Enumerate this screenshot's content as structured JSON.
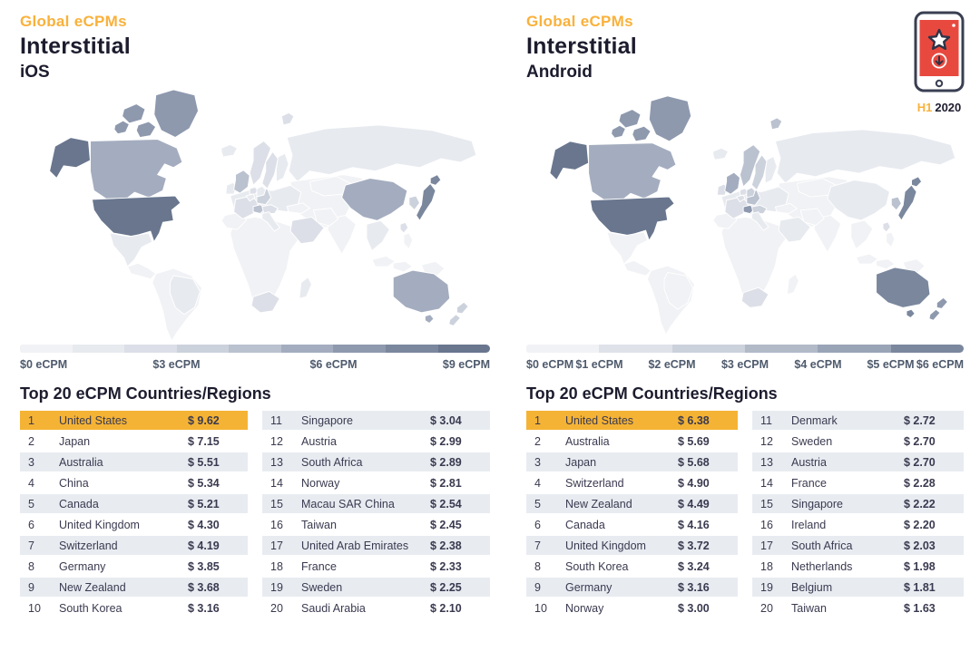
{
  "badge": {
    "icon": "phone-star-download-icon",
    "period": "H1",
    "year": "2020"
  },
  "colors": {
    "accent_orange": "#F9B13B",
    "highlight_row": "#F5B335",
    "heading": "#1C1C2E",
    "table_text": "#3A3A50",
    "row_alt_bg": "#E8ECF1",
    "legend_label": "#4E5A6C",
    "phone_red": "#E8493F",
    "phone_outline": "#3A3F52",
    "map_palette": [
      "#f1f2f5",
      "#e7eaef",
      "#dcdfe7",
      "#ccd2dc",
      "#bac1cf",
      "#a4adbf",
      "#8e99ae",
      "#7a879d",
      "#69768e"
    ]
  },
  "chart_data": [
    {
      "type": "heatmap",
      "eyebrow": "Global eCPMs",
      "title": "Interstitial",
      "platform": "iOS",
      "section_title": "Top 20 eCPM Countries/Regions",
      "unit": "USD eCPM",
      "legend": {
        "range": [
          0,
          9
        ],
        "segments": [
          "#f1f2f5",
          "#e7eaef",
          "#dcdfe7",
          "#ccd2dc",
          "#bac1cf",
          "#a4adbf",
          "#8e99ae",
          "#7a879d",
          "#69768e"
        ],
        "labels": [
          {
            "text": "$0 eCPM",
            "pos": 0
          },
          {
            "text": "$3 eCPM",
            "pos": 33.3
          },
          {
            "text": "$6 eCPM",
            "pos": 66.7
          },
          {
            "text": "$9 eCPM",
            "pos": 100
          }
        ]
      },
      "rows_left": [
        {
          "rank": 1,
          "country": "United States",
          "value": 9.62,
          "value_display": "$ 9.62"
        },
        {
          "rank": 2,
          "country": "Japan",
          "value": 7.15,
          "value_display": "$ 7.15"
        },
        {
          "rank": 3,
          "country": "Australia",
          "value": 5.51,
          "value_display": "$ 5.51"
        },
        {
          "rank": 4,
          "country": "China",
          "value": 5.34,
          "value_display": "$ 5.34"
        },
        {
          "rank": 5,
          "country": "Canada",
          "value": 5.21,
          "value_display": "$ 5.21"
        },
        {
          "rank": 6,
          "country": "United Kingdom",
          "value": 4.3,
          "value_display": "$ 4.30"
        },
        {
          "rank": 7,
          "country": "Switzerland",
          "value": 4.19,
          "value_display": "$ 4.19"
        },
        {
          "rank": 8,
          "country": "Germany",
          "value": 3.85,
          "value_display": "$ 3.85"
        },
        {
          "rank": 9,
          "country": "New Zealand",
          "value": 3.68,
          "value_display": "$ 3.68"
        },
        {
          "rank": 10,
          "country": "South Korea",
          "value": 3.16,
          "value_display": "$ 3.16"
        }
      ],
      "rows_right": [
        {
          "rank": 11,
          "country": "Singapore",
          "value": 3.04,
          "value_display": "$ 3.04"
        },
        {
          "rank": 12,
          "country": "Austria",
          "value": 2.99,
          "value_display": "$ 2.99"
        },
        {
          "rank": 13,
          "country": "South Africa",
          "value": 2.89,
          "value_display": "$ 2.89"
        },
        {
          "rank": 14,
          "country": "Norway",
          "value": 2.81,
          "value_display": "$ 2.81"
        },
        {
          "rank": 15,
          "country": "Macau SAR China",
          "value": 2.54,
          "value_display": "$ 2.54"
        },
        {
          "rank": 16,
          "country": "Taiwan",
          "value": 2.45,
          "value_display": "$ 2.45"
        },
        {
          "rank": 17,
          "country": "United Arab Emirates",
          "value": 2.38,
          "value_display": "$ 2.38"
        },
        {
          "rank": 18,
          "country": "France",
          "value": 2.33,
          "value_display": "$ 2.33"
        },
        {
          "rank": 19,
          "country": "Sweden",
          "value": 2.25,
          "value_display": "$ 2.25"
        },
        {
          "rank": 20,
          "country": "Saudi Arabia",
          "value": 2.1,
          "value_display": "$ 2.10"
        }
      ],
      "map_levels": {
        "usa": 8,
        "alaska": 8,
        "japan_main": 7,
        "japan_hokkaido": 7,
        "greenland": 6,
        "arctic1": 6,
        "arctic2": 6,
        "arctic3": 6,
        "australia": 5,
        "tasmania": 5,
        "china": 5,
        "canada": 5,
        "uk": 4,
        "switzerland": 4,
        "germany": 3,
        "nz1": 3,
        "nz2": 3,
        "korea": 3,
        "austria": 2,
        "south_africa": 2,
        "norway": 2,
        "svalbard": 2,
        "taiwan": 2,
        "france": 2,
        "sweden": 2,
        "saudi": 2,
        "netherlands": 2,
        "belgium": 1,
        "denmark": 1,
        "finland": 1,
        "iceland": 1,
        "ireland": 1,
        "italy": 1,
        "europe_base": 1,
        "russia": 1,
        "brazil": 1,
        "mexico": 1,
        "sea": 1,
        "madagascar": 1
      }
    },
    {
      "type": "heatmap",
      "eyebrow": "Global eCPMs",
      "title": "Interstitial",
      "platform": "Android",
      "section_title": "Top 20 eCPM Countries/Regions",
      "unit": "USD eCPM",
      "legend": {
        "range": [
          0,
          6
        ],
        "segments": [
          "#f1f2f5",
          "#dfe2e9",
          "#ccd2dc",
          "#b2bac8",
          "#9aa4b7",
          "#7a879d"
        ],
        "labels": [
          {
            "text": "$0 eCPM",
            "pos": 0
          },
          {
            "text": "$1 eCPM",
            "pos": 16.7
          },
          {
            "text": "$2 eCPM",
            "pos": 33.3
          },
          {
            "text": "$3 eCPM",
            "pos": 50
          },
          {
            "text": "$4 eCPM",
            "pos": 66.7
          },
          {
            "text": "$5 eCPM",
            "pos": 83.3
          },
          {
            "text": "$6 eCPM",
            "pos": 100
          }
        ]
      },
      "rows_left": [
        {
          "rank": 1,
          "country": "United States",
          "value": 6.38,
          "value_display": "$ 6.38"
        },
        {
          "rank": 2,
          "country": "Australia",
          "value": 5.69,
          "value_display": "$ 5.69"
        },
        {
          "rank": 3,
          "country": "Japan",
          "value": 5.68,
          "value_display": "$ 5.68"
        },
        {
          "rank": 4,
          "country": "Switzerland",
          "value": 4.9,
          "value_display": "$ 4.90"
        },
        {
          "rank": 5,
          "country": "New Zealand",
          "value": 4.49,
          "value_display": "$ 4.49"
        },
        {
          "rank": 6,
          "country": "Canada",
          "value": 4.16,
          "value_display": "$ 4.16"
        },
        {
          "rank": 7,
          "country": "United Kingdom",
          "value": 3.72,
          "value_display": "$ 3.72"
        },
        {
          "rank": 8,
          "country": "South Korea",
          "value": 3.24,
          "value_display": "$ 3.24"
        },
        {
          "rank": 9,
          "country": "Germany",
          "value": 3.16,
          "value_display": "$ 3.16"
        },
        {
          "rank": 10,
          "country": "Norway",
          "value": 3.0,
          "value_display": "$ 3.00"
        }
      ],
      "rows_right": [
        {
          "rank": 11,
          "country": "Denmark",
          "value": 2.72,
          "value_display": "$ 2.72"
        },
        {
          "rank": 12,
          "country": "Sweden",
          "value": 2.7,
          "value_display": "$ 2.70"
        },
        {
          "rank": 13,
          "country": "Austria",
          "value": 2.7,
          "value_display": "$ 2.70"
        },
        {
          "rank": 14,
          "country": "France",
          "value": 2.28,
          "value_display": "$ 2.28"
        },
        {
          "rank": 15,
          "country": "Singapore",
          "value": 2.22,
          "value_display": "$ 2.22"
        },
        {
          "rank": 16,
          "country": "Ireland",
          "value": 2.2,
          "value_display": "$ 2.20"
        },
        {
          "rank": 17,
          "country": "South Africa",
          "value": 2.03,
          "value_display": "$ 2.03"
        },
        {
          "rank": 18,
          "country": "Netherlands",
          "value": 1.98,
          "value_display": "$ 1.98"
        },
        {
          "rank": 19,
          "country": "Belgium",
          "value": 1.81,
          "value_display": "$ 1.81"
        },
        {
          "rank": 20,
          "country": "Taiwan",
          "value": 1.63,
          "value_display": "$ 1.63"
        }
      ],
      "map_levels": {
        "usa": 8,
        "alaska": 8,
        "japan_main": 7,
        "japan_hokkaido": 7,
        "australia": 7,
        "tasmania": 7,
        "greenland": 6,
        "arctic1": 6,
        "arctic2": 6,
        "arctic3": 6,
        "switzerland": 6,
        "nz1": 6,
        "nz2": 6,
        "canada": 5,
        "uk": 5,
        "korea": 4,
        "germany": 4,
        "norway": 4,
        "svalbard": 4,
        "denmark": 3,
        "sweden": 3,
        "austria": 3,
        "france": 2,
        "ireland": 2,
        "south_africa": 2,
        "netherlands": 2,
        "belgium": 2,
        "taiwan": 2,
        "china": 1,
        "russia": 1,
        "saudi": 1,
        "finland": 1,
        "iceland": 1,
        "italy": 1,
        "europe_base": 1,
        "mexico": 0,
        "brazil": 0,
        "sea": 0,
        "madagascar": 0
      }
    }
  ]
}
